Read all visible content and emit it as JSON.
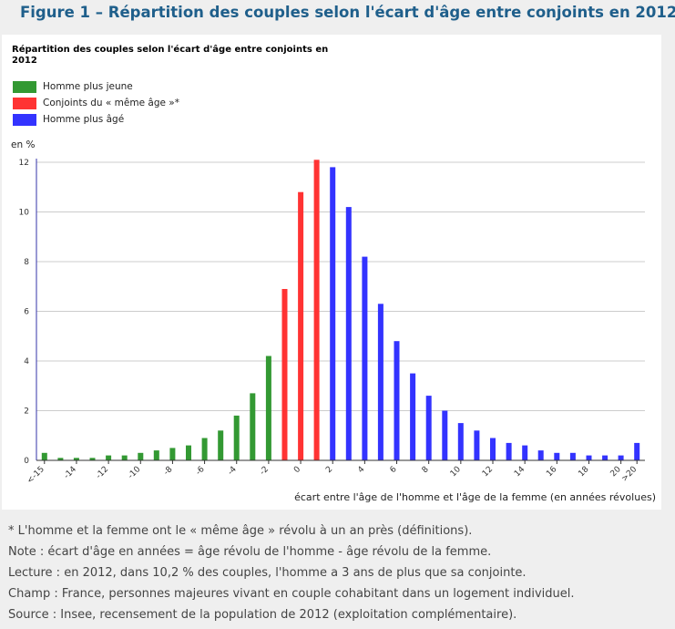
{
  "figure_title": "Figure 1 – Répartition des couples selon l'écart d'âge entre conjoints en 2012",
  "chart_data": {
    "type": "bar",
    "title": "Répartition des couples selon l'écart d'âge entre conjoints en 2012",
    "unit_label": "en %",
    "xlabel": "écart entre l'âge de l'homme et l'âge de la femme (en années révolues)",
    "ylim": [
      0,
      12
    ],
    "yticks": [
      0,
      2,
      4,
      6,
      8,
      10,
      12
    ],
    "grid": true,
    "legend_position": "top-left",
    "series": [
      {
        "name": "Homme plus jeune",
        "color": "#339933"
      },
      {
        "name": "Conjoints du « même âge »*",
        "color": "#ff3333"
      },
      {
        "name": "Homme plus âgé",
        "color": "#3333ff"
      }
    ],
    "categories": [
      "<-15",
      "-15",
      "-14",
      "-13",
      "-12",
      "-11",
      "-10",
      "-9",
      "-8",
      "-7",
      "-6",
      "-5",
      "-4",
      "-3",
      "-2",
      "-1",
      "0",
      "1",
      "2",
      "3",
      "4",
      "5",
      "6",
      "7",
      "8",
      "9",
      "10",
      "11",
      "12",
      "13",
      "14",
      "15",
      "16",
      "17",
      "18",
      "19",
      "20",
      ">20"
    ],
    "tick_labels": [
      "<-15",
      "-14",
      "-12",
      "-10",
      "-8",
      "-6",
      "-4",
      "-2",
      "0",
      "2",
      "4",
      "6",
      "8",
      "10",
      "12",
      "14",
      "16",
      "18",
      "20",
      ">20"
    ],
    "values": [
      0.3,
      0.1,
      0.1,
      0.1,
      0.2,
      0.2,
      0.3,
      0.4,
      0.5,
      0.6,
      0.9,
      1.2,
      1.8,
      2.7,
      4.2,
      6.9,
      10.8,
      12.1,
      11.8,
      10.2,
      8.2,
      6.3,
      4.8,
      3.5,
      2.6,
      2.0,
      1.5,
      1.2,
      0.9,
      0.7,
      0.6,
      0.4,
      0.3,
      0.3,
      0.2,
      0.2,
      0.2,
      0.7
    ],
    "groups": [
      0,
      0,
      0,
      0,
      0,
      0,
      0,
      0,
      0,
      0,
      0,
      0,
      0,
      0,
      0,
      1,
      1,
      1,
      2,
      2,
      2,
      2,
      2,
      2,
      2,
      2,
      2,
      2,
      2,
      2,
      2,
      2,
      2,
      2,
      2,
      2,
      2,
      2
    ]
  },
  "notes": [
    "* L'homme et la femme ont le « même âge » révolu à un an près (définitions).",
    "Note : écart d'âge en années = âge révolu de l'homme - âge révolu de la femme.",
    "Lecture : en 2012, dans 10,2 % des couples, l'homme a 3 ans de plus que sa conjointe.",
    "Champ : France, personnes majeures vivant en couple cohabitant dans un logement individuel.",
    "Source : Insee, recensement de la population de 2012 (exploitation complémentaire)."
  ]
}
